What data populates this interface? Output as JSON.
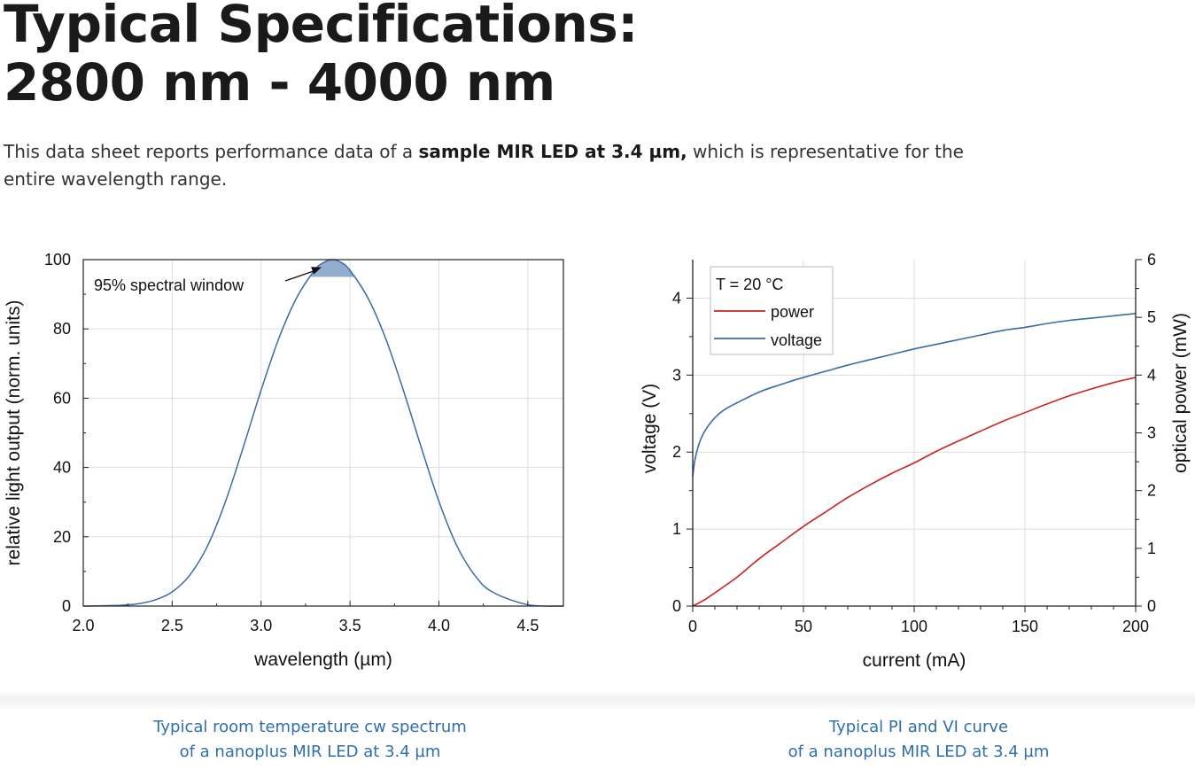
{
  "heading": {
    "line1": "Typical Specifications:",
    "line2": "2800 nm - 4000 nm"
  },
  "intro": {
    "before": "This data sheet reports performance data of a ",
    "bold": "sample MIR LED at 3.4 µm,",
    "after": " which is representative for the entire wavelength range."
  },
  "captions": {
    "left_line1": "Typical room temperature cw spectrum",
    "left_line2": "of a nanoplus MIR LED at 3.4 µm",
    "right_line1": "Typical PI and VI curve",
    "right_line2": "of a nanoplus MIR LED at 3.4 µm"
  },
  "colors": {
    "spectrum": "#3b6aa8",
    "power": "#cc2222",
    "voltage": "#3b6aa8",
    "caption": "#2e6fae"
  },
  "chart_data": [
    {
      "type": "line",
      "xlabel": "wavelength (µm)",
      "ylabel": "relative light output (norm. units)",
      "xlim": [
        2.0,
        4.7
      ],
      "ylim": [
        0,
        100
      ],
      "xticks": [
        2.0,
        2.5,
        3.0,
        3.5,
        4.0,
        4.5
      ],
      "yticks": [
        0,
        20,
        40,
        60,
        80,
        100
      ],
      "grid": true,
      "annotation": "95% spectral window",
      "window": {
        "threshold": 95
      },
      "series": [
        {
          "x": [
            2.0,
            2.2,
            2.3,
            2.4,
            2.5,
            2.6,
            2.7,
            2.8,
            2.9,
            3.0,
            3.1,
            3.2,
            3.3,
            3.35,
            3.4,
            3.45,
            3.5,
            3.6,
            3.7,
            3.8,
            3.9,
            4.0,
            4.1,
            4.2,
            4.3,
            4.5,
            4.7
          ],
          "values": [
            0,
            0.2,
            0.6,
            1.7,
            4.1,
            9.0,
            17.5,
            30.2,
            45.9,
            62.3,
            77.3,
            89.0,
            96.9,
            99.1,
            100,
            99.2,
            96.9,
            89.0,
            77.3,
            62.3,
            45.9,
            30.2,
            17.5,
            9.0,
            4.1,
            0.4,
            0
          ]
        }
      ]
    },
    {
      "type": "line",
      "xlabel": "current (mA)",
      "ylabel": "voltage (V)",
      "y2label": "optical power (mW)",
      "xlim": [
        0,
        200
      ],
      "ylim": [
        0,
        4.5
      ],
      "y2lim": [
        0,
        6
      ],
      "xticks": [
        0,
        50,
        100,
        150,
        200
      ],
      "yticks": [
        0,
        1,
        2,
        3,
        4
      ],
      "y2ticks": [
        0,
        1,
        2,
        3,
        4,
        5,
        6
      ],
      "grid": true,
      "legend_position": "top-left",
      "legend_title": "T = 20 °C",
      "series": [
        {
          "name": "power",
          "axis": "right",
          "x": [
            0,
            5,
            10,
            20,
            30,
            40,
            50,
            60,
            70,
            80,
            90,
            100,
            110,
            120,
            130,
            140,
            150,
            160,
            170,
            180,
            190,
            200
          ],
          "values": [
            0,
            0.1,
            0.23,
            0.5,
            0.82,
            1.1,
            1.38,
            1.63,
            1.88,
            2.1,
            2.3,
            2.48,
            2.68,
            2.86,
            3.03,
            3.2,
            3.35,
            3.5,
            3.64,
            3.76,
            3.87,
            3.96
          ]
        },
        {
          "name": "voltage",
          "axis": "left",
          "x": [
            0,
            1,
            3,
            5,
            8,
            12,
            16,
            20,
            30,
            40,
            50,
            60,
            70,
            80,
            90,
            100,
            110,
            120,
            130,
            140,
            150,
            160,
            170,
            180,
            190,
            200
          ],
          "values": [
            1.68,
            1.9,
            2.12,
            2.25,
            2.38,
            2.5,
            2.58,
            2.64,
            2.78,
            2.88,
            2.97,
            3.05,
            3.13,
            3.2,
            3.27,
            3.34,
            3.4,
            3.46,
            3.52,
            3.58,
            3.62,
            3.67,
            3.71,
            3.74,
            3.77,
            3.8
          ]
        }
      ]
    }
  ]
}
